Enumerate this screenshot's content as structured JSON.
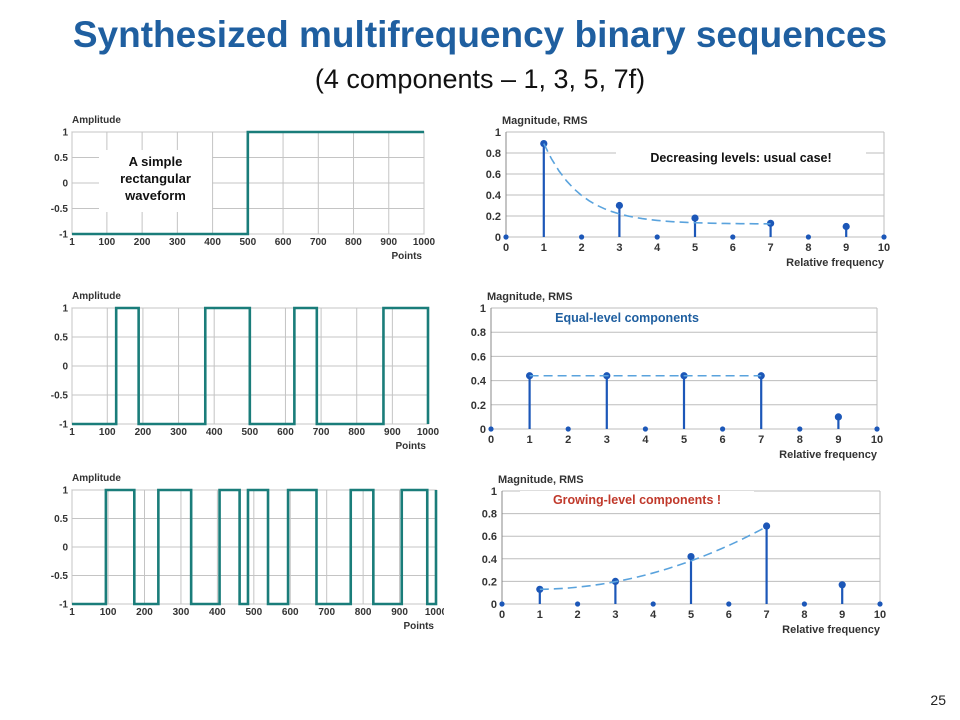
{
  "slide": {
    "title": "Synthesized multifrequency binary sequences",
    "subtitle": "(4 components – 1, 3, 5, 7f)",
    "page_number": "25"
  },
  "chart_data": [
    {
      "type": "line",
      "ylabel": "Amplitude",
      "xlabel": "Points",
      "xlim": [
        1,
        1000
      ],
      "ylim": [
        -1,
        1
      ],
      "xticks": [
        "1",
        "100",
        "200",
        "300",
        "400",
        "500",
        "600",
        "700",
        "800",
        "900",
        "1000"
      ],
      "yticks": [
        "1",
        "0.5",
        "0",
        "-0.5",
        "-1"
      ],
      "line_color": "#1a7d7a",
      "grid": true,
      "annotation": "A simple rectangular waveform",
      "step_x": [
        1,
        500,
        1000
      ],
      "step_y": [
        -1,
        1,
        1
      ]
    },
    {
      "type": "line",
      "ylabel": "Amplitude",
      "xlabel": "Points",
      "xlim": [
        1,
        1000
      ],
      "ylim": [
        -1,
        1
      ],
      "xticks": [
        "1",
        "100",
        "200",
        "300",
        "400",
        "500",
        "600",
        "700",
        "800",
        "900",
        "1000"
      ],
      "yticks": [
        "1",
        "0.5",
        "0",
        "-0.5",
        "-1"
      ],
      "line_color": "#1a7d7a",
      "grid": true,
      "annotation": "",
      "step_x": [
        1,
        125,
        188,
        375,
        500,
        625,
        688,
        875,
        1000
      ],
      "step_y": [
        -1,
        1,
        -1,
        1,
        -1,
        1,
        -1,
        1,
        -1
      ]
    },
    {
      "type": "line",
      "ylabel": "Amplitude",
      "xlabel": "Points",
      "xlim": [
        1,
        1000
      ],
      "ylim": [
        -1,
        1
      ],
      "xticks": [
        "1",
        "100",
        "200",
        "300",
        "400",
        "500",
        "600",
        "700",
        "800",
        "900",
        "1000"
      ],
      "yticks": [
        "1",
        "0.5",
        "0",
        "-0.5",
        "-1"
      ],
      "line_color": "#1a7d7a",
      "grid": true,
      "annotation": "",
      "step_x": [
        1,
        94,
        172,
        238,
        328,
        406,
        461,
        484,
        539,
        594,
        672,
        766,
        828,
        906,
        976,
        1000
      ],
      "step_y": [
        -1,
        1,
        -1,
        1,
        -1,
        1,
        -1,
        1,
        -1,
        1,
        -1,
        1,
        -1,
        1,
        -1,
        1
      ]
    },
    {
      "type": "scatter",
      "ylabel": "Magnitude, RMS",
      "xlabel": "Relative frequency",
      "xlim": [
        0,
        10
      ],
      "ylim": [
        0,
        1
      ],
      "xticks": [
        "0",
        "1",
        "2",
        "3",
        "4",
        "5",
        "6",
        "7",
        "8",
        "9",
        "10"
      ],
      "yticks": [
        "1",
        "0.8",
        "0.6",
        "0.4",
        "0.2",
        "0"
      ],
      "annotation": "Decreasing levels: usual case!",
      "annotation_color": "#111111",
      "x": [
        0,
        1,
        2,
        3,
        4,
        5,
        6,
        7,
        8,
        9,
        10
      ],
      "y": [
        0,
        0.89,
        0,
        0.3,
        0,
        0.18,
        0,
        0.13,
        0,
        0.1,
        0
      ],
      "components": [
        1,
        3,
        5,
        7
      ],
      "trend": {
        "x": [
          1,
          3,
          5,
          7
        ],
        "y": [
          0.89,
          0.3,
          0.18,
          0.13
        ]
      }
    },
    {
      "type": "scatter",
      "ylabel": "Magnitude, RMS",
      "xlabel": "Relative frequency",
      "xlim": [
        0,
        10
      ],
      "ylim": [
        0,
        1
      ],
      "xticks": [
        "0",
        "1",
        "2",
        "3",
        "4",
        "5",
        "6",
        "7",
        "8",
        "9",
        "10"
      ],
      "yticks": [
        "1",
        "0.8",
        "0.6",
        "0.4",
        "0.2",
        "0"
      ],
      "annotation": "Equal-level components",
      "annotation_color": "#1f5fa0",
      "x": [
        0,
        1,
        2,
        3,
        4,
        5,
        6,
        7,
        8,
        9,
        10
      ],
      "y": [
        0,
        0.44,
        0,
        0.44,
        0,
        0.44,
        0,
        0.44,
        0,
        0.1,
        0
      ],
      "components": [
        1,
        3,
        5,
        7
      ],
      "trend": {
        "x": [
          1,
          3,
          5,
          7
        ],
        "y": [
          0.44,
          0.44,
          0.44,
          0.44
        ]
      }
    },
    {
      "type": "scatter",
      "ylabel": "Magnitude, RMS",
      "xlabel": "Relative frequency",
      "xlim": [
        0,
        10
      ],
      "ylim": [
        0,
        1
      ],
      "xticks": [
        "0",
        "1",
        "2",
        "3",
        "4",
        "5",
        "6",
        "7",
        "8",
        "9",
        "10"
      ],
      "yticks": [
        "1",
        "0.8",
        "0.6",
        "0.4",
        "0.2",
        "0"
      ],
      "annotation": "Growing-level components !",
      "annotation_color": "#c0392b",
      "x": [
        0,
        1,
        2,
        3,
        4,
        5,
        6,
        7,
        8,
        9,
        10
      ],
      "y": [
        0,
        0.13,
        0,
        0.2,
        0,
        0.42,
        0,
        0.69,
        0,
        0.17,
        0
      ],
      "components": [
        1,
        3,
        5,
        7
      ],
      "trend": {
        "x": [
          1,
          3,
          5,
          7
        ],
        "y": [
          0.13,
          0.2,
          0.42,
          0.69
        ]
      }
    }
  ]
}
